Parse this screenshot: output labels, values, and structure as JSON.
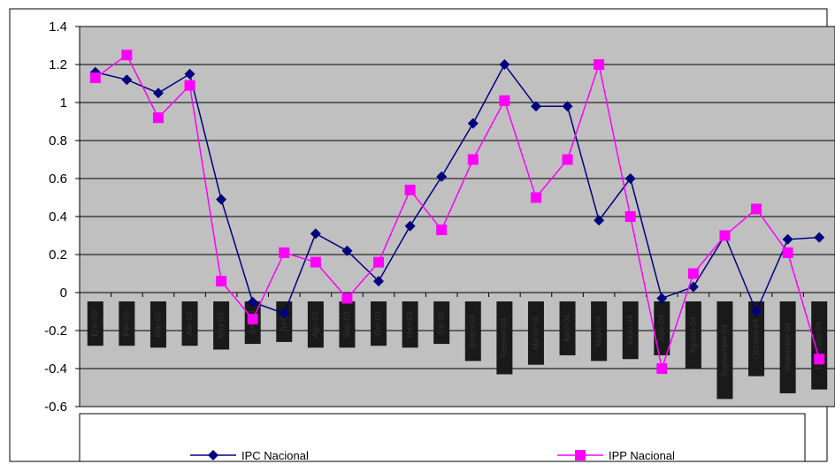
{
  "chart_data": {
    "type": "line",
    "title": "",
    "xlabel": "",
    "ylabel": "",
    "ylim": [
      -0.6,
      1.4
    ],
    "yticks": [
      -0.6,
      -0.4,
      -0.2,
      0,
      0.2,
      0.4,
      0.6,
      0.8,
      1,
      1.2,
      1.4
    ],
    "ytick_labels": [
      "-0.6",
      "-0.4",
      "-0.2",
      "0",
      "0.2",
      "0.4",
      "0.6",
      "0.8",
      "1",
      "1.2",
      "1.4"
    ],
    "grid": "horizontal",
    "plot_background": "#c0c0c0",
    "legend_position": "bottom",
    "categories": [
      "Ene-03",
      "Feb-03",
      "Mar-03",
      "Abr-03",
      "May-03",
      "Jun-03",
      "Jul-03",
      "Ago-03",
      "Sep-03",
      "Oct-03",
      "Nov-03",
      "Dic-03",
      "Enero-04",
      "Febrero-04",
      "Marzo-04",
      "Abril-04",
      "Mayo-04",
      "Junio-04",
      "Julio-04",
      "Agosto-04",
      "Septiembre-04",
      "Octubre-04",
      "Noviembre-04",
      "Diciembre-04"
    ],
    "series": [
      {
        "name": "IPC Nacional",
        "color": "#000080",
        "marker": "diamond",
        "values": [
          1.16,
          1.12,
          1.05,
          1.15,
          0.49,
          -0.05,
          -0.11,
          0.31,
          0.22,
          0.06,
          0.35,
          0.61,
          0.89,
          1.2,
          0.98,
          0.98,
          0.38,
          0.6,
          -0.03,
          0.03,
          0.3,
          -0.1,
          0.28,
          0.29
        ]
      },
      {
        "name": "IPP Nacional",
        "color": "#ff00ff",
        "marker": "square",
        "values": [
          1.13,
          1.25,
          0.92,
          1.09,
          0.06,
          -0.14,
          0.21,
          0.16,
          -0.03,
          0.16,
          0.54,
          0.33,
          0.7,
          1.01,
          0.5,
          0.7,
          1.2,
          0.4,
          -0.4,
          0.1,
          0.3,
          0.44,
          0.21,
          -0.35
        ]
      }
    ],
    "label_bar_depth": [
      0.28,
      0.28,
      0.29,
      0.28,
      0.3,
      0.27,
      0.26,
      0.29,
      0.29,
      0.28,
      0.29,
      0.27,
      0.36,
      0.43,
      0.38,
      0.33,
      0.36,
      0.35,
      0.33,
      0.4,
      0.56,
      0.44,
      0.53,
      0.51
    ]
  }
}
